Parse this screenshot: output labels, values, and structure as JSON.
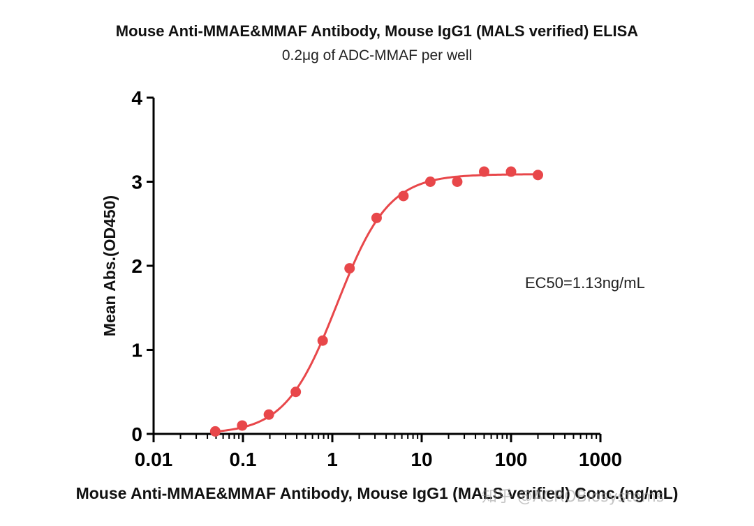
{
  "chart_data": {
    "type": "scatter",
    "title": "Mouse Anti-MMAE&MMAF Antibody, Mouse IgG1 (MALS verified) ELISA",
    "subtitle": "0.2μg of  ADC-MMAF per well",
    "xlabel": "Mouse Anti-MMAE&MMAF Antibody, Mouse IgG1 (MALS verified) Conc.(ng/mL)",
    "ylabel": "Mean Abs.(OD450)",
    "x_scale": "log",
    "xlim": [
      0.01,
      1000
    ],
    "ylim": [
      0,
      4
    ],
    "x_ticks": [
      "0.01",
      "0.1",
      "1",
      "10",
      "100",
      "1000"
    ],
    "y_ticks": [
      "0",
      "1",
      "2",
      "3",
      "4"
    ],
    "x_tick_values": [
      0.01,
      0.1,
      1,
      10,
      100,
      1000
    ],
    "y_tick_values": [
      0,
      1,
      2,
      3,
      4
    ],
    "grid": false,
    "color": "#e8474a",
    "annotation": "EC50=1.13ng/mL",
    "points": {
      "x": [
        0.049,
        0.098,
        0.195,
        0.39,
        0.78,
        1.56,
        3.13,
        6.25,
        12.5,
        25,
        50,
        100,
        200
      ],
      "y": [
        0.03,
        0.1,
        0.23,
        0.5,
        1.11,
        1.97,
        2.57,
        2.83,
        3.0,
        3.0,
        3.12,
        3.12,
        3.08
      ]
    },
    "fit": {
      "model": "4PL",
      "bottom": 0.0,
      "top": 3.09,
      "ec50": 1.13,
      "hill": 1.5
    }
  },
  "watermark": "知乎 @ACROBiosystems"
}
